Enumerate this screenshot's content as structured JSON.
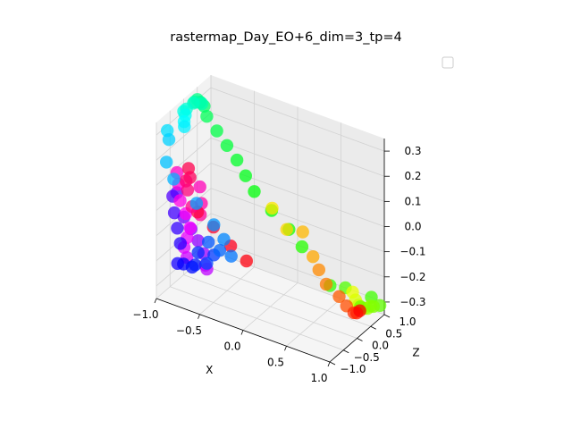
{
  "chart_data": {
    "type": "scatter",
    "title": "rastermap_Day_EO+6_dim=3_tp=4",
    "xlabel": "X",
    "ylabel": "",
    "zlabel": "Z",
    "xlim": [
      -1.0,
      1.0
    ],
    "ylim": [
      -1.0,
      1.0
    ],
    "zlim": [
      -0.35,
      0.35
    ],
    "x_ticks": [
      "−1.0",
      "−0.5",
      "0.0",
      "0.5",
      "1.0"
    ],
    "y_ticks": [
      "−1.0",
      "−0.5",
      "0.0",
      "0.5",
      "1.0"
    ],
    "z_ticks": [
      "−0.3",
      "−0.2",
      "−0.1",
      "0.0",
      "0.1",
      "0.2",
      "0.3"
    ],
    "grid": true,
    "legend": "top-right (empty)",
    "colormap": "hsv",
    "points": [
      {
        "x": 1.0,
        "y": 0.1,
        "z": -0.25,
        "c": 0.0
      },
      {
        "x": 0.95,
        "y": 0.15,
        "z": -0.27,
        "c": 0.02
      },
      {
        "x": 0.9,
        "y": 0.2,
        "z": -0.28,
        "c": 0.03
      },
      {
        "x": 0.8,
        "y": 0.25,
        "z": -0.27,
        "c": 0.05
      },
      {
        "x": 0.7,
        "y": 0.3,
        "z": -0.25,
        "c": 0.06
      },
      {
        "x": 0.55,
        "y": 0.3,
        "z": -0.22,
        "c": 0.08
      },
      {
        "x": 0.45,
        "y": 0.35,
        "z": -0.18,
        "c": 0.09
      },
      {
        "x": 0.35,
        "y": 0.45,
        "z": -0.15,
        "c": 0.11
      },
      {
        "x": 0.2,
        "y": 0.55,
        "z": -0.08,
        "c": 0.12
      },
      {
        "x": 0.0,
        "y": 0.6,
        "z": -0.1,
        "c": 0.14
      },
      {
        "x": -0.2,
        "y": 0.7,
        "z": -0.05,
        "c": 0.15
      },
      {
        "x": 0.65,
        "y": 0.95,
        "z": -0.3,
        "c": 0.18
      },
      {
        "x": 0.7,
        "y": 0.9,
        "z": -0.32,
        "c": 0.19
      },
      {
        "x": 0.75,
        "y": 0.85,
        "z": -0.33,
        "c": 0.2
      },
      {
        "x": 0.8,
        "y": 0.8,
        "z": -0.33,
        "c": 0.21
      },
      {
        "x": 0.85,
        "y": 0.75,
        "z": -0.32,
        "c": 0.22
      },
      {
        "x": 0.9,
        "y": 0.7,
        "z": -0.31,
        "c": 0.23
      },
      {
        "x": 0.95,
        "y": 0.65,
        "z": -0.29,
        "c": 0.24
      },
      {
        "x": 1.0,
        "y": 0.6,
        "z": -0.28,
        "c": 0.25
      },
      {
        "x": 0.85,
        "y": 0.6,
        "z": -0.3,
        "c": 0.26
      },
      {
        "x": 0.95,
        "y": 1.0,
        "z": -0.32,
        "c": 0.27
      },
      {
        "x": 0.55,
        "y": 1.0,
        "z": -0.3,
        "c": 0.28
      },
      {
        "x": 0.85,
        "y": 1.0,
        "z": -0.3,
        "c": 0.29
      },
      {
        "x": 0.5,
        "y": 0.6,
        "z": -0.26,
        "c": 0.3
      },
      {
        "x": 0.05,
        "y": 1.0,
        "z": -0.2,
        "c": 0.31
      },
      {
        "x": -0.1,
        "y": 1.0,
        "z": -0.15,
        "c": 0.32
      },
      {
        "x": -0.3,
        "y": 1.0,
        "z": -0.1,
        "c": 0.33
      },
      {
        "x": -0.5,
        "y": 1.0,
        "z": -0.05,
        "c": 0.34
      },
      {
        "x": -0.6,
        "y": 1.0,
        "z": 0.0,
        "c": 0.35
      },
      {
        "x": -0.7,
        "y": 1.0,
        "z": 0.05,
        "c": 0.36
      },
      {
        "x": -0.8,
        "y": 0.95,
        "z": 0.1,
        "c": 0.37
      },
      {
        "x": -0.9,
        "y": 0.9,
        "z": 0.15,
        "c": 0.38
      },
      {
        "x": -1.0,
        "y": 0.85,
        "z": 0.2,
        "c": 0.39
      },
      {
        "x": -1.0,
        "y": 0.75,
        "z": 0.25,
        "c": 0.4
      },
      {
        "x": -1.0,
        "y": 0.6,
        "z": 0.28,
        "c": 0.41
      },
      {
        "x": -1.0,
        "y": 0.5,
        "z": 0.3,
        "c": 0.42
      },
      {
        "x": -0.95,
        "y": 0.45,
        "z": 0.3,
        "c": 0.43
      },
      {
        "x": -1.0,
        "y": 0.4,
        "z": 0.3,
        "c": 0.44
      },
      {
        "x": -0.9,
        "y": 0.35,
        "z": 0.31,
        "c": 0.45
      },
      {
        "x": -0.95,
        "y": 0.2,
        "z": 0.32,
        "c": 0.46
      },
      {
        "x": -1.0,
        "y": 0.1,
        "z": 0.3,
        "c": 0.47
      },
      {
        "x": -1.0,
        "y": 0.0,
        "z": 0.3,
        "c": 0.48
      },
      {
        "x": -0.95,
        "y": -0.1,
        "z": 0.3,
        "c": 0.49
      },
      {
        "x": -0.9,
        "y": -0.3,
        "z": 0.3,
        "c": 0.5
      },
      {
        "x": -0.85,
        "y": -0.45,
        "z": 0.3,
        "c": 0.51
      },
      {
        "x": -1.0,
        "y": -0.6,
        "z": 0.28,
        "c": 0.52
      },
      {
        "x": -0.95,
        "y": -0.7,
        "z": 0.26,
        "c": 0.53
      },
      {
        "x": -0.9,
        "y": -0.95,
        "z": 0.2,
        "c": 0.54
      },
      {
        "x": -0.8,
        "y": -1.0,
        "z": 0.15,
        "c": 0.55
      },
      {
        "x": -0.6,
        "y": -0.8,
        "z": 0.06,
        "c": 0.56
      },
      {
        "x": -0.4,
        "y": -0.8,
        "z": 0.0,
        "c": 0.57
      },
      {
        "x": -0.3,
        "y": -0.75,
        "z": -0.05,
        "c": 0.58
      },
      {
        "x": -0.2,
        "y": -0.8,
        "z": -0.1,
        "c": 0.59
      },
      {
        "x": -0.3,
        "y": -0.9,
        "z": -0.08,
        "c": 0.6
      },
      {
        "x": -0.4,
        "y": -1.0,
        "z": -0.05,
        "c": 0.61
      },
      {
        "x": -0.45,
        "y": -0.9,
        "z": -0.15,
        "c": 0.62
      },
      {
        "x": -0.4,
        "y": -0.8,
        "z": -0.12,
        "c": 0.63
      },
      {
        "x": -0.55,
        "y": -0.9,
        "z": -0.12,
        "c": 0.64
      },
      {
        "x": -0.6,
        "y": -0.85,
        "z": -0.18,
        "c": 0.65
      },
      {
        "x": -0.65,
        "y": -0.8,
        "z": -0.2,
        "c": 0.66
      },
      {
        "x": -0.75,
        "y": -0.8,
        "z": -0.2,
        "c": 0.67
      },
      {
        "x": -0.85,
        "y": -0.7,
        "z": -0.22,
        "c": 0.68
      },
      {
        "x": -0.85,
        "y": -0.6,
        "z": -0.15,
        "c": 0.69
      },
      {
        "x": -0.9,
        "y": -0.55,
        "z": -0.1,
        "c": 0.7
      },
      {
        "x": -0.95,
        "y": -0.5,
        "z": -0.05,
        "c": 0.71
      },
      {
        "x": -1.0,
        "y": -0.4,
        "z": 0.0,
        "c": 0.72
      },
      {
        "x": -1.0,
        "y": -0.25,
        "z": 0.0,
        "c": 0.73
      },
      {
        "x": -0.95,
        "y": -0.15,
        "z": -0.1,
        "c": 0.74
      },
      {
        "x": -0.9,
        "y": -0.05,
        "z": -0.15,
        "c": 0.75
      },
      {
        "x": -0.85,
        "y": 0.05,
        "z": -0.2,
        "c": 0.76
      },
      {
        "x": -0.8,
        "y": 0.1,
        "z": -0.25,
        "c": 0.77
      },
      {
        "x": -0.75,
        "y": 0.0,
        "z": -0.28,
        "c": 0.78
      },
      {
        "x": -0.7,
        "y": -0.1,
        "z": -0.28,
        "c": 0.79
      },
      {
        "x": -0.9,
        "y": -0.2,
        "z": -0.25,
        "c": 0.8
      },
      {
        "x": -0.9,
        "y": -0.3,
        "z": -0.2,
        "c": 0.81
      },
      {
        "x": -0.85,
        "y": -0.35,
        "z": -0.15,
        "c": 0.82
      },
      {
        "x": -0.8,
        "y": -0.4,
        "z": -0.1,
        "c": 0.83
      },
      {
        "x": -0.85,
        "y": -0.4,
        "z": -0.05,
        "c": 0.84
      },
      {
        "x": -0.9,
        "y": -0.45,
        "z": 0.0,
        "c": 0.85
      },
      {
        "x": -0.95,
        "y": -0.35,
        "z": 0.05,
        "c": 0.86
      },
      {
        "x": -1.0,
        "y": -0.25,
        "z": 0.08,
        "c": 0.87
      },
      {
        "x": -0.75,
        "y": -0.2,
        "z": 0.05,
        "c": 0.88
      },
      {
        "x": -0.7,
        "y": -0.3,
        "z": 0.0,
        "c": 0.89
      },
      {
        "x": -0.65,
        "y": -0.5,
        "z": -0.02,
        "c": 0.9
      },
      {
        "x": -0.7,
        "y": -0.65,
        "z": 0.02,
        "c": 0.91
      },
      {
        "x": -0.75,
        "y": -0.65,
        "z": 0.08,
        "c": 0.92
      },
      {
        "x": -0.8,
        "y": -0.55,
        "z": 0.1,
        "c": 0.93
      },
      {
        "x": -0.8,
        "y": -0.4,
        "z": 0.1,
        "c": 0.94
      },
      {
        "x": -0.85,
        "y": -0.3,
        "z": 0.12,
        "c": 0.95
      },
      {
        "x": -0.65,
        "y": -0.6,
        "z": 0.0,
        "c": 0.96
      },
      {
        "x": -0.5,
        "y": -0.5,
        "z": -0.05,
        "c": 0.97
      },
      {
        "x": -0.3,
        "y": -0.5,
        "z": -0.1,
        "c": 0.98
      },
      {
        "x": -0.15,
        "y": -0.4,
        "z": -0.15,
        "c": 0.99
      }
    ]
  }
}
